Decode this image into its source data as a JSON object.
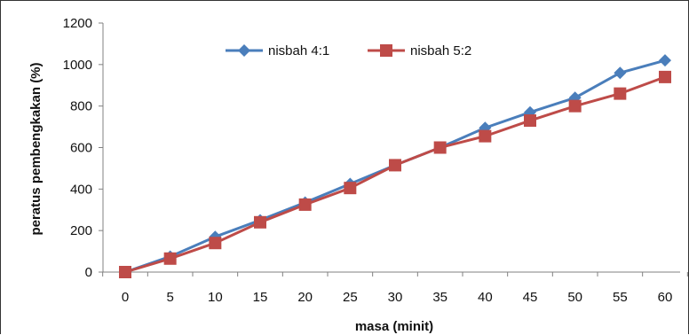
{
  "chart_data": {
    "type": "line",
    "title": "",
    "xlabel": "masa (minit)",
    "ylabel": "peratus pembengkakan (%)",
    "x": [
      0,
      5,
      10,
      15,
      20,
      25,
      30,
      35,
      40,
      45,
      50,
      55,
      60
    ],
    "ylim": [
      0,
      1200
    ],
    "yticks": [
      0,
      200,
      400,
      600,
      800,
      1000,
      1200
    ],
    "grid": false,
    "legend_position": "top",
    "series": [
      {
        "name": "nisbah 4:1",
        "color": "#4a7ebb",
        "marker": "diamond",
        "values": [
          0,
          75,
          170,
          250,
          335,
          425,
          515,
          600,
          695,
          770,
          840,
          960,
          1020
        ]
      },
      {
        "name": "nisbah 5:2",
        "color": "#be4b48",
        "marker": "square",
        "values": [
          0,
          65,
          140,
          240,
          325,
          405,
          515,
          600,
          655,
          730,
          800,
          860,
          940
        ]
      }
    ]
  }
}
